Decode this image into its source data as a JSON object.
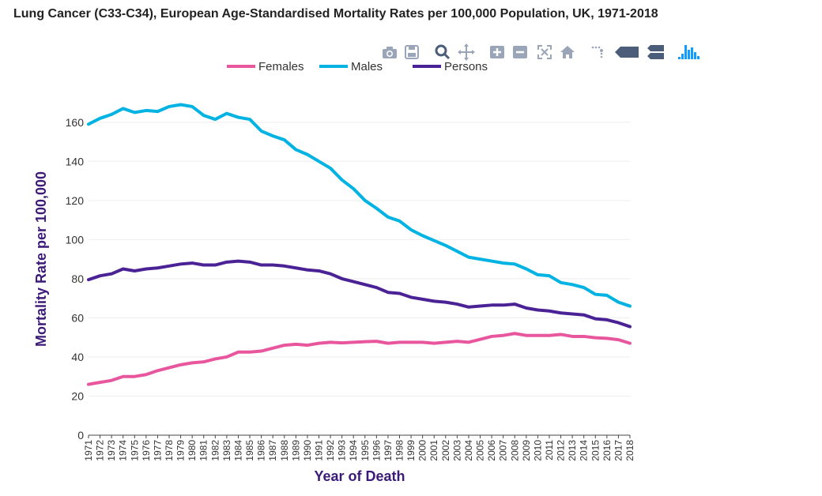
{
  "title": "Lung Cancer (C33-C34), European Age-Standardised Mortality Rates per 100,000 Population, UK, 1971-2018",
  "toolbar": {
    "icons": [
      "camera-icon",
      "save-icon",
      "zoom-icon",
      "pan-icon",
      "zoom-in-icon",
      "zoom-out-icon",
      "autoscale-icon",
      "reset-axes-icon",
      "spike-lines-icon",
      "hover-closest-icon",
      "hover-compare-icon",
      "plotly-logo-icon"
    ]
  },
  "chart_data": {
    "type": "line",
    "title": "Lung Cancer (C33-C34), European Age-Standardised Mortality Rates per 100,000 Population, UK, 1971-2018",
    "xlabel": "Year of Death",
    "ylabel": "Mortality Rate per 100,000",
    "ylim": [
      0,
      170
    ],
    "yticks": [
      0,
      20,
      40,
      60,
      80,
      100,
      120,
      140,
      160
    ],
    "grid": true,
    "legend_position": "top-center",
    "x": [
      "1971",
      "1972",
      "1973",
      "1974",
      "1975",
      "1976",
      "1977",
      "1978",
      "1979",
      "1980",
      "1981",
      "1982",
      "1983",
      "1984",
      "1985",
      "1986",
      "1987",
      "1988",
      "1989",
      "1990",
      "1991",
      "1992",
      "1993",
      "1994",
      "1995",
      "1996",
      "1997",
      "1998",
      "1999",
      "2000",
      "2001",
      "2002",
      "2003",
      "2004",
      "2005",
      "2006",
      "2007",
      "2008",
      "2009",
      "2010",
      "2011",
      "2012",
      "2013",
      "2014",
      "2015",
      "2016",
      "2017",
      "2018"
    ],
    "series": [
      {
        "name": "Females",
        "color": "#e8569e",
        "values": [
          26,
          27,
          28,
          30,
          30,
          31,
          33,
          34.5,
          36,
          37,
          37.5,
          39,
          40,
          42.5,
          42.5,
          43,
          44.5,
          46,
          46.5,
          46,
          47,
          47.5,
          47.2,
          47.5,
          47.8,
          48,
          47,
          47.5,
          47.5,
          47.5,
          47,
          47.5,
          48,
          47.5,
          49,
          50.5,
          51,
          52,
          51,
          51,
          51,
          51.5,
          50.5,
          50.5,
          49.8,
          49.5,
          48.8,
          47
        ]
      },
      {
        "name": "Males",
        "color": "#00b3e3",
        "values": [
          159,
          162,
          164,
          167,
          165,
          166,
          165.5,
          168,
          169,
          168,
          163.5,
          161.5,
          164.5,
          162.5,
          161.5,
          155.5,
          153,
          151,
          146,
          143.5,
          140,
          136.5,
          130.5,
          126,
          120,
          116,
          111.5,
          109.5,
          105,
          102,
          99.5,
          97,
          94,
          91,
          90,
          89,
          88,
          87.5,
          85,
          82,
          81.5,
          78,
          77,
          75.5,
          72,
          71.5,
          68,
          66
        ]
      },
      {
        "name": "Persons",
        "color": "#4b2296",
        "values": [
          79.5,
          81.5,
          82.5,
          85,
          84,
          85,
          85.5,
          86.5,
          87.5,
          88,
          87,
          87,
          88.5,
          89,
          88.5,
          87,
          87,
          86.5,
          85.5,
          84.5,
          84,
          82.5,
          80,
          78.5,
          77,
          75.5,
          73,
          72.5,
          70.5,
          69.5,
          68.5,
          68,
          67,
          65.5,
          66,
          66.5,
          66.5,
          67,
          65,
          64,
          63.5,
          62.5,
          62,
          61.5,
          59.5,
          59,
          57.5,
          55.5
        ]
      }
    ]
  }
}
